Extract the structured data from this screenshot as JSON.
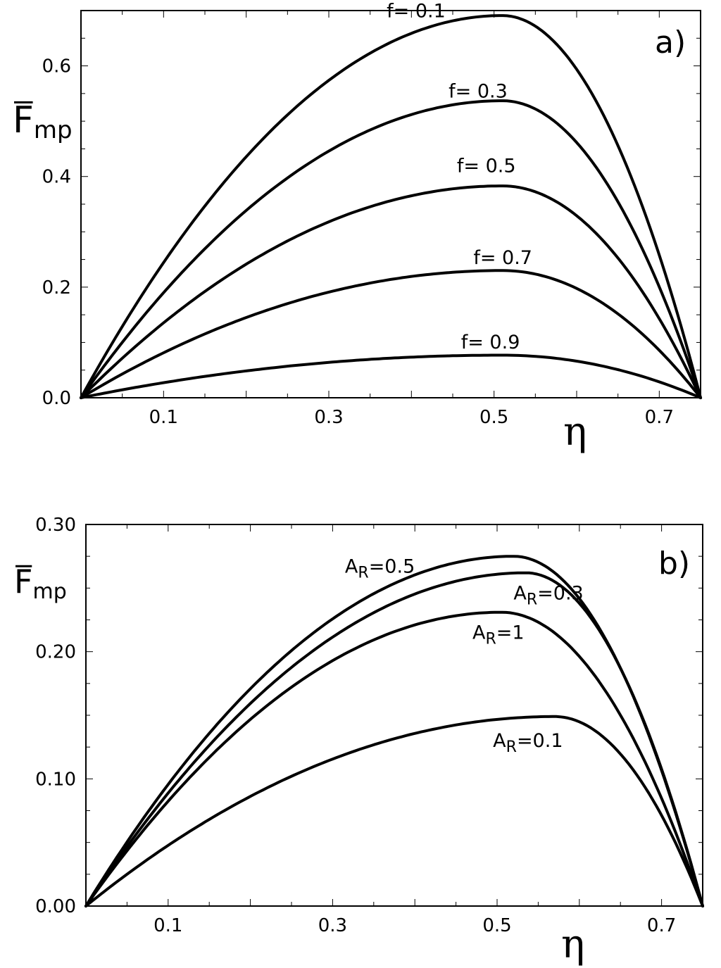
{
  "chart_data": [
    {
      "type": "line",
      "panel_label": "a)",
      "ylabel_main": "F",
      "ylabel_sub": "mp",
      "xlabel": "η",
      "xlim": [
        0.0,
        0.75
      ],
      "ylim": [
        0.0,
        0.7
      ],
      "xticks": [
        0.1,
        0.3,
        0.5,
        0.7
      ],
      "xtick_labels": [
        "0.1",
        "0.3",
        "0.5",
        "0.7"
      ],
      "yticks": [
        0.0,
        0.2,
        0.4,
        0.6
      ],
      "ytick_labels": [
        "0.0",
        "0.2",
        "0.4",
        "0.6"
      ],
      "series": [
        {
          "name": "f= 0.1",
          "peak_x": 0.51,
          "peak_y": 0.691,
          "label_anchor": [
            0.37,
            0.688
          ]
        },
        {
          "name": "f= 0.3",
          "peak_x": 0.51,
          "peak_y": 0.537,
          "label_anchor": [
            0.445,
            0.543
          ]
        },
        {
          "name": "f= 0.5",
          "peak_x": 0.51,
          "peak_y": 0.383,
          "label_anchor": [
            0.455,
            0.408
          ]
        },
        {
          "name": "f= 0.7",
          "peak_x": 0.51,
          "peak_y": 0.23,
          "label_anchor": [
            0.475,
            0.242
          ]
        },
        {
          "name": "f= 0.9",
          "peak_x": 0.51,
          "peak_y": 0.077,
          "label_anchor": [
            0.46,
            0.089
          ]
        }
      ]
    },
    {
      "type": "line",
      "panel_label": "b)",
      "ylabel_main": "F",
      "ylabel_sub": "mp",
      "xlabel": "η",
      "xlim": [
        0.0,
        0.75
      ],
      "ylim": [
        0.0,
        0.3
      ],
      "xticks": [
        0.1,
        0.3,
        0.5,
        0.7
      ],
      "xtick_labels": [
        "0.1",
        "0.3",
        "0.5",
        "0.7"
      ],
      "yticks": [
        0.0,
        0.1,
        0.2,
        0.3
      ],
      "ytick_labels": [
        "0.00",
        "0.10",
        "0.20",
        "0.30"
      ],
      "series": [
        {
          "name": "A_R=0.5",
          "label_main": "A",
          "label_sub": "R",
          "label_tail": "=0.5",
          "peak_x": 0.52,
          "peak_y": 0.275,
          "label_anchor": [
            0.315,
            0.262
          ]
        },
        {
          "name": "A_R=0.3",
          "label_main": "A",
          "label_sub": "R",
          "label_tail": "=0.3",
          "peak_x": 0.535,
          "peak_y": 0.262,
          "label_anchor": [
            0.52,
            0.241
          ]
        },
        {
          "name": "A_R=1",
          "label_main": "A",
          "label_sub": "R",
          "label_tail": "=1",
          "peak_x": 0.505,
          "peak_y": 0.231,
          "label_anchor": [
            0.47,
            0.21
          ]
        },
        {
          "name": "A_R=0.1",
          "label_main": "A",
          "label_sub": "R",
          "label_tail": "=0.1",
          "peak_x": 0.57,
          "peak_y": 0.149,
          "label_anchor": [
            0.495,
            0.125
          ]
        }
      ]
    }
  ]
}
